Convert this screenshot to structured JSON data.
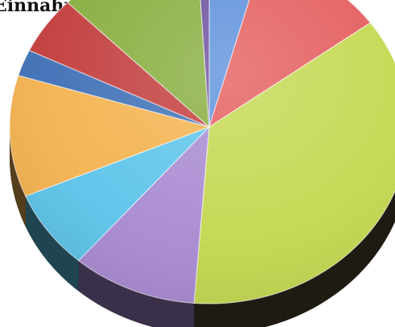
{
  "chart_data": {
    "type": "pie",
    "title": "Einnahmen:",
    "slices": [
      {
        "value": 4.5,
        "color": "#5b8fdc"
      },
      {
        "value": 11.0,
        "color": "#e45b5b"
      },
      {
        "value": 37.5,
        "color": "#c3d84f"
      },
      {
        "value": 10.5,
        "color": "#a98ad2"
      },
      {
        "value": 7.5,
        "color": "#5cc4ea"
      },
      {
        "value": 11.5,
        "color": "#f4b24e"
      },
      {
        "value": 2.5,
        "color": "#3d6fb6"
      },
      {
        "value": 5.5,
        "color": "#c23b3b"
      },
      {
        "value": 12.0,
        "color": "#86ad3c"
      },
      {
        "value": 1.0,
        "color": "#6a4e9b"
      }
    ],
    "start_angle_deg": -90,
    "style": "3d"
  }
}
